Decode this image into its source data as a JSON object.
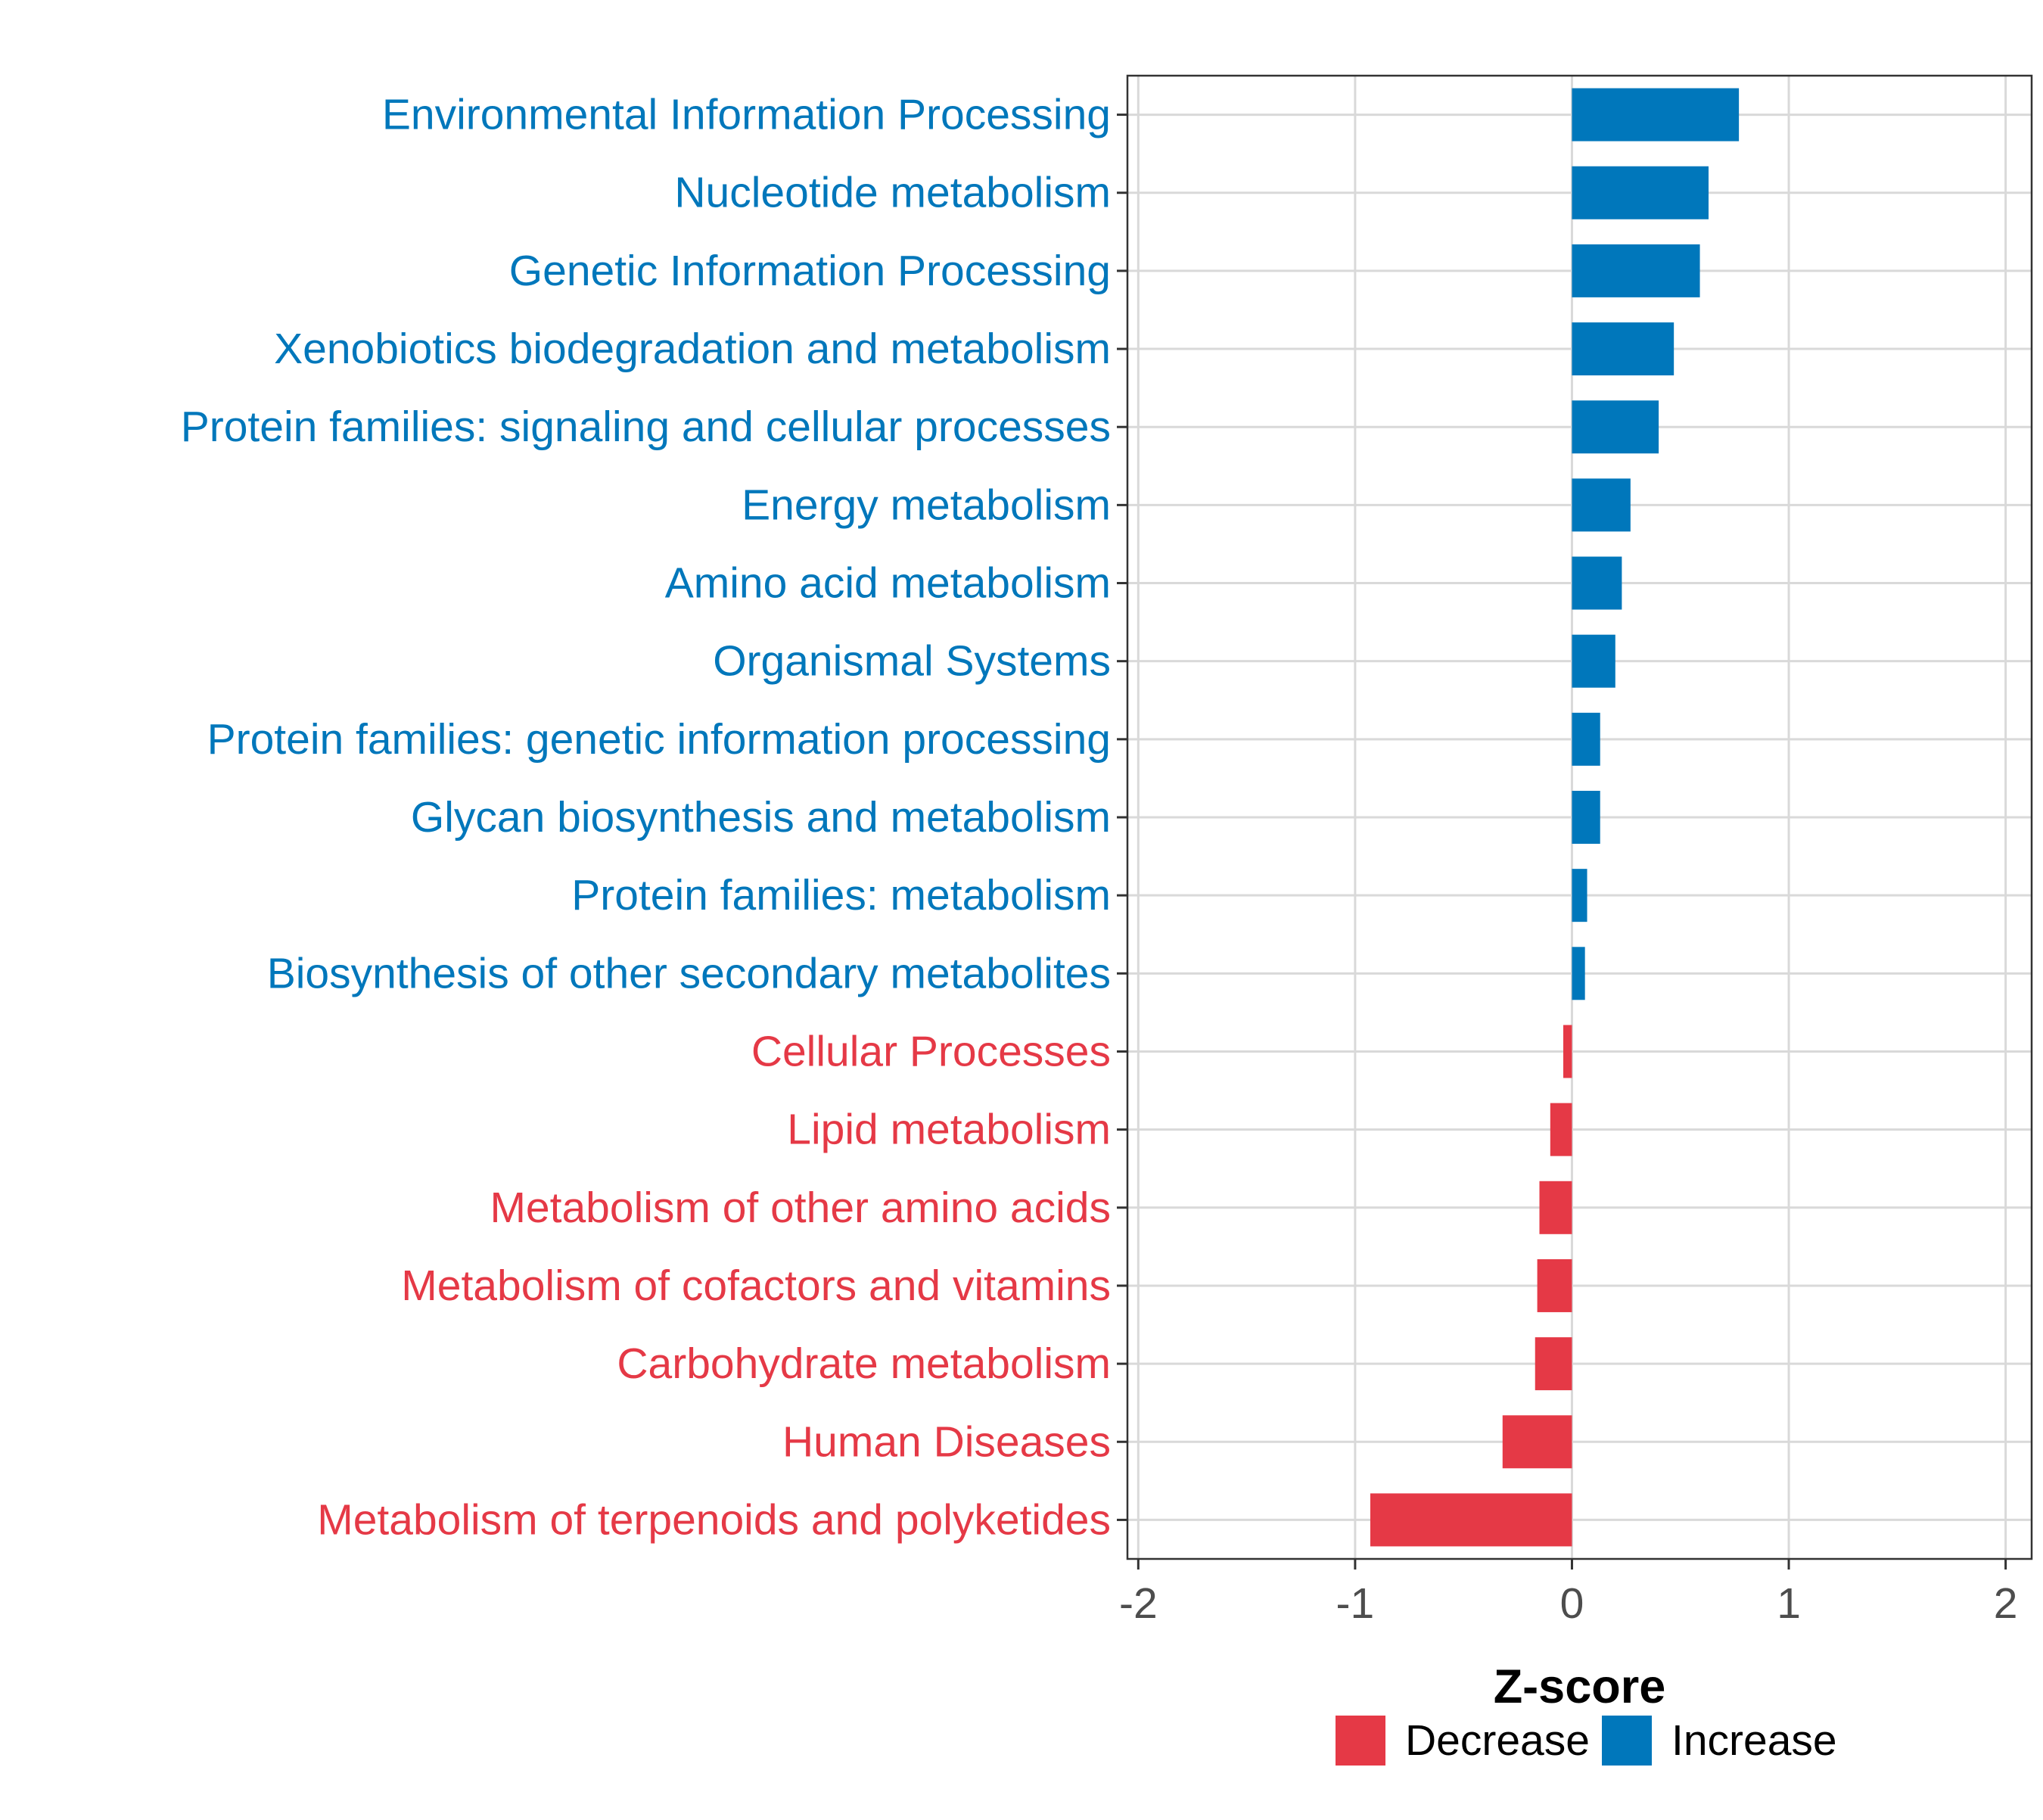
{
  "chart_data": {
    "type": "bar",
    "orientation": "horizontal",
    "xlabel": "Z-score",
    "xlim": [
      -2.05,
      2.12
    ],
    "xticks": [
      -2,
      -1,
      0,
      1,
      2
    ],
    "xtick_labels": [
      "-2",
      "-1",
      "0",
      "1",
      "2"
    ],
    "grid": true,
    "legend_position": "bottom",
    "colors": {
      "Increase": "#0077bb",
      "Decrease": "#e53946"
    },
    "legend": [
      {
        "label": "Decrease",
        "color": "#e53946"
      },
      {
        "label": "Increase",
        "color": "#0077bb"
      }
    ],
    "categories": [
      "Environmental Information Processing",
      "Nucleotide metabolism",
      "Genetic Information Processing",
      "Xenobiotics biodegradation and metabolism",
      "Protein families: signaling and cellular processes",
      "Energy metabolism",
      "Amino acid metabolism",
      "Organismal Systems",
      "Protein families: genetic information processing",
      "Glycan biosynthesis and metabolism",
      "Protein families: metabolism",
      "Biosynthesis of other secondary metabolites",
      "Cellular Processes",
      "Lipid metabolism",
      "Metabolism of other amino acids",
      "Metabolism of cofactors and vitamins",
      "Carbohydrate metabolism",
      "Human Diseases",
      "Metabolism of terpenoids and polyketides"
    ],
    "values": [
      0.77,
      0.63,
      0.59,
      0.47,
      0.4,
      0.27,
      0.23,
      0.2,
      0.13,
      0.13,
      0.07,
      0.06,
      -0.04,
      -0.1,
      -0.15,
      -0.16,
      -0.17,
      -0.32,
      -0.93
    ],
    "groups": [
      "Increase",
      "Increase",
      "Increase",
      "Increase",
      "Increase",
      "Increase",
      "Increase",
      "Increase",
      "Increase",
      "Increase",
      "Increase",
      "Increase",
      "Decrease",
      "Decrease",
      "Decrease",
      "Decrease",
      "Decrease",
      "Decrease",
      "Decrease"
    ]
  }
}
